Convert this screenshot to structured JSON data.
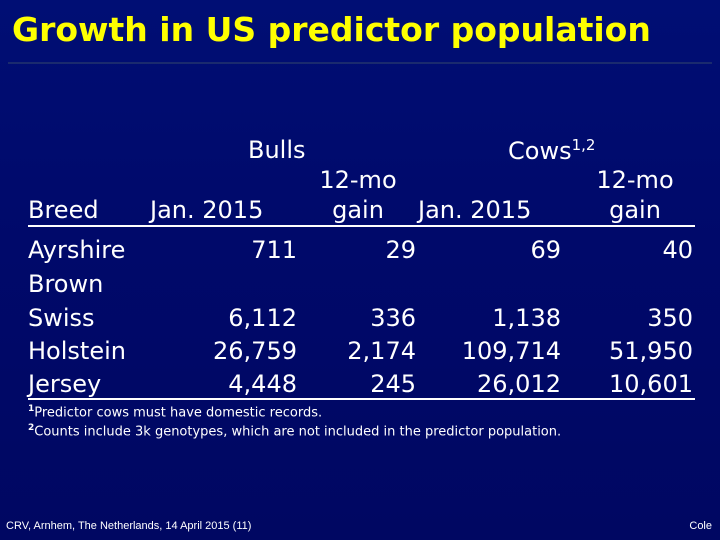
{
  "title": "Growth in US predictor population",
  "table": {
    "group_bulls": "Bulls",
    "group_cows": "Cows",
    "group_cows_sup": "1,2",
    "col_breed": "Breed",
    "col_bulls_jan": "Jan. 2015",
    "col_bulls_gain_line1": "12-mo",
    "col_bulls_gain_line2": "gain",
    "col_cows_jan": "Jan. 2015",
    "col_cows_gain_line1": "12-mo",
    "col_cows_gain_line2": "gain",
    "rows": [
      {
        "breed": "Ayrshire",
        "bulls_jan": "711",
        "bulls_gain": "29",
        "cows_jan": "69",
        "cows_gain": "40"
      },
      {
        "breed_line1": "Brown",
        "breed_line2": "Swiss",
        "bulls_jan": "6,112",
        "bulls_gain": "336",
        "cows_jan": "1,138",
        "cows_gain": "350"
      },
      {
        "breed": "Holstein",
        "bulls_jan": "26,759",
        "bulls_gain": "2,174",
        "cows_jan": "109,714",
        "cows_gain": "51,950"
      },
      {
        "breed": "Jersey",
        "bulls_jan": "4,448",
        "bulls_gain": "245",
        "cows_jan": "26,012",
        "cows_gain": "10,601"
      }
    ]
  },
  "notes": [
    {
      "marker": "1",
      "text": "Predictor cows must have domestic records."
    },
    {
      "marker": "2",
      "text": "Counts include 3k genotypes, which are not included in the predictor population."
    }
  ],
  "footer": {
    "left": "CRV, Arnhem, The Netherlands, 14 April 2015 (11)",
    "right": "Cole"
  },
  "colors": {
    "background": "#000a6c",
    "title": "#ffff00",
    "text": "#ffffff"
  }
}
